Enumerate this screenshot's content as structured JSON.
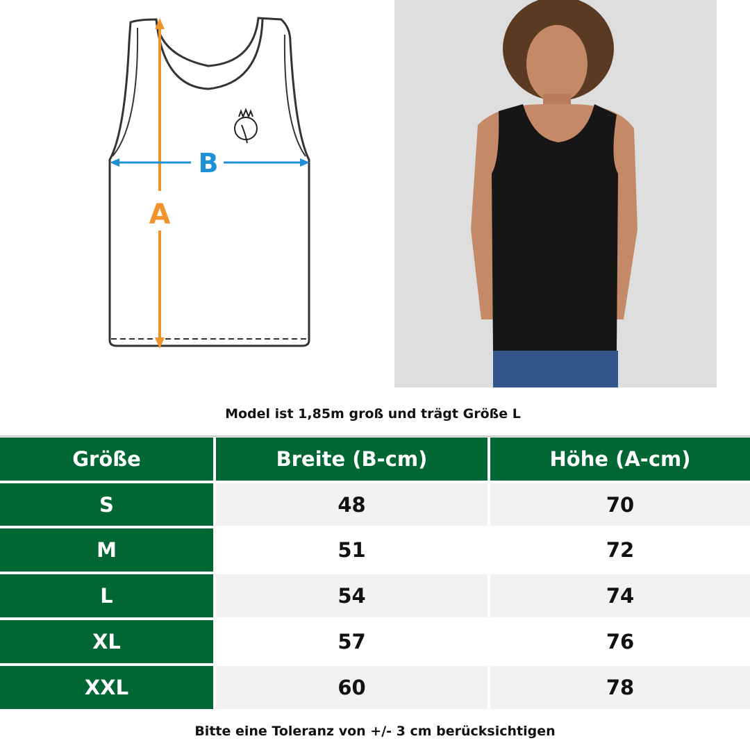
{
  "diagram": {
    "label_a": "A",
    "label_b": "B",
    "colors": {
      "a": "#f0932b",
      "b": "#1e90d6"
    },
    "logo": "owl-logo"
  },
  "photo": {
    "subject": "model-in-black-tank-top"
  },
  "caption_top": "Model ist 1,85m groß und trägt Größe L",
  "table": {
    "headers": [
      "Größe",
      "Breite (B-cm)",
      "Höhe (A-cm)"
    ],
    "rows": [
      {
        "size": "S",
        "breite": "48",
        "hoehe": "70"
      },
      {
        "size": "M",
        "breite": "51",
        "hoehe": "72"
      },
      {
        "size": "L",
        "breite": "54",
        "hoehe": "74"
      },
      {
        "size": "XL",
        "breite": "57",
        "hoehe": "76"
      },
      {
        "size": "XXL",
        "breite": "60",
        "hoehe": "78"
      }
    ],
    "colors": {
      "header": "#006633",
      "stripe": "#f2f2f2"
    }
  },
  "caption_bottom": "Bitte eine Toleranz von +/- 3 cm berücksichtigen"
}
